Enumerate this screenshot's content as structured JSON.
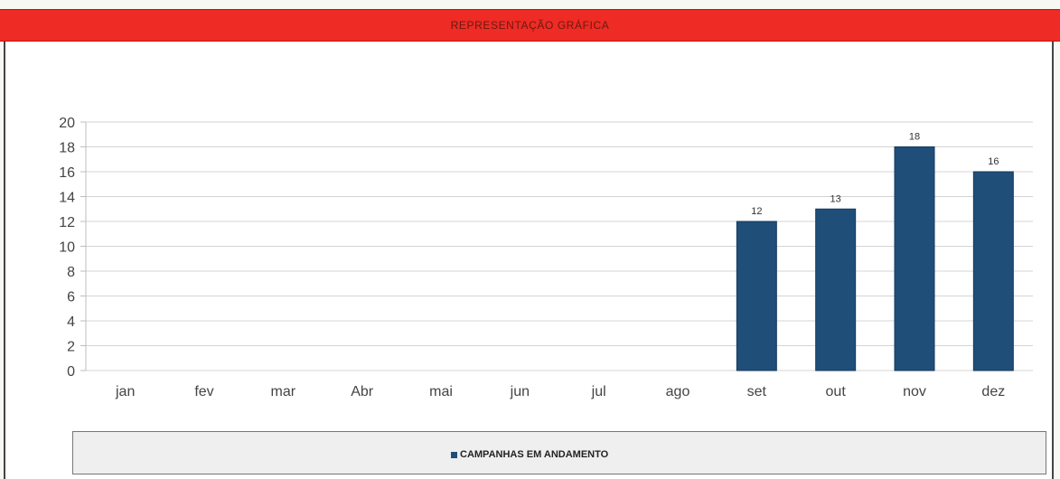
{
  "header": {
    "title": "REPRESENTAÇÃO GRÁFICA"
  },
  "colors": {
    "header_bg": "#ee2b24",
    "bar": "#1f4e79"
  },
  "chart_data": {
    "type": "bar",
    "title": "",
    "xlabel": "",
    "ylabel": "",
    "categories": [
      "jan",
      "fev",
      "mar",
      "Abr",
      "mai",
      "jun",
      "jul",
      "ago",
      "set",
      "out",
      "nov",
      "dez"
    ],
    "series": [
      {
        "name": "CAMPANHAS EM ANDAMENTO",
        "values": [
          0,
          0,
          0,
          0,
          0,
          0,
          0,
          0,
          12,
          13,
          18,
          16
        ]
      }
    ],
    "data_labels": [
      "",
      "",
      "",
      "",
      "",
      "",
      "",
      "",
      "12",
      "13",
      "18",
      "16"
    ],
    "ylim": [
      0,
      20
    ],
    "yticks": [
      "0",
      "2",
      "4",
      "6",
      "8",
      "10",
      "12",
      "14",
      "16",
      "18",
      "20"
    ],
    "grid": true,
    "legend_position": "bottom"
  },
  "legend": {
    "label": "CAMPANHAS EM ANDAMENTO"
  }
}
